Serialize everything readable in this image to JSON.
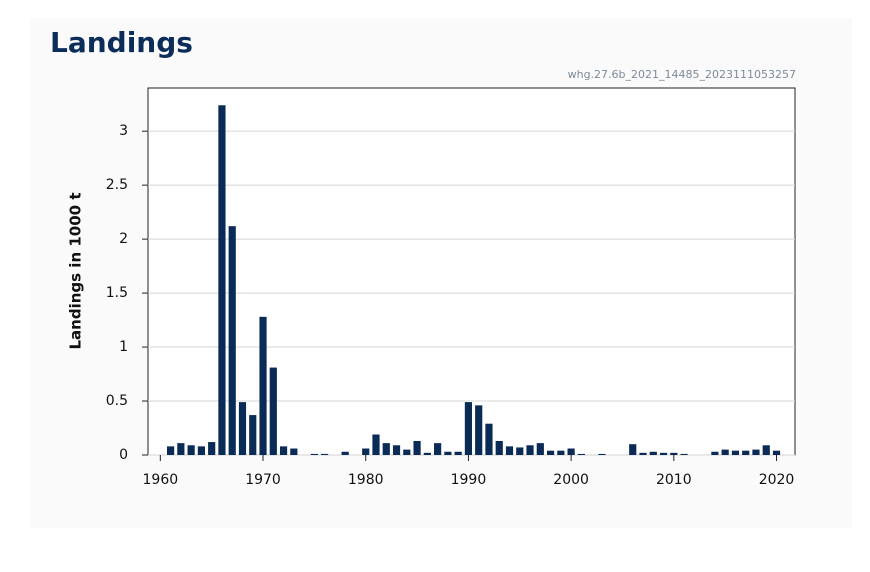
{
  "chart_data": {
    "type": "bar",
    "title": "Landings",
    "annotation": "whg.27.6b_2021_14485_2023111053257",
    "y_label": "Landings in 1000 t",
    "x": [
      1961,
      1962,
      1963,
      1964,
      1965,
      1966,
      1967,
      1968,
      1969,
      1970,
      1971,
      1972,
      1973,
      1974,
      1975,
      1976,
      1977,
      1978,
      1979,
      1980,
      1981,
      1982,
      1983,
      1984,
      1985,
      1986,
      1987,
      1988,
      1989,
      1990,
      1991,
      1992,
      1993,
      1994,
      1995,
      1996,
      1997,
      1998,
      1999,
      2000,
      2001,
      2002,
      2003,
      2004,
      2005,
      2006,
      2007,
      2008,
      2009,
      2010,
      2011,
      2012,
      2013,
      2014,
      2015,
      2016,
      2017,
      2018,
      2019,
      2020
    ],
    "values": [
      0.08,
      0.11,
      0.09,
      0.08,
      0.12,
      3.24,
      2.12,
      0.49,
      0.37,
      1.28,
      0.81,
      0.08,
      0.06,
      0,
      0.01,
      0.01,
      0,
      0.03,
      0,
      0.06,
      0.19,
      0.11,
      0.09,
      0.05,
      0.13,
      0.02,
      0.11,
      0.03,
      0.03,
      0.49,
      0.46,
      0.29,
      0.13,
      0.08,
      0.07,
      0.09,
      0.11,
      0.04,
      0.04,
      0.06,
      0.01,
      0,
      0.01,
      0,
      0,
      0.1,
      0.02,
      0.03,
      0.02,
      0.02,
      0.01,
      0,
      0,
      0.03,
      0.05,
      0.04,
      0.04,
      0.05,
      0.09,
      0.04
    ],
    "color": "#0b2b57",
    "xlim": [
      1958.8,
      2021.8
    ],
    "xticks": [
      1960,
      1970,
      1980,
      1990,
      2000,
      2010,
      2020
    ],
    "ylim": [
      0,
      3.4
    ],
    "yticks": [
      0,
      0.5,
      1,
      1.5,
      2,
      2.5,
      3
    ],
    "grid": true
  }
}
